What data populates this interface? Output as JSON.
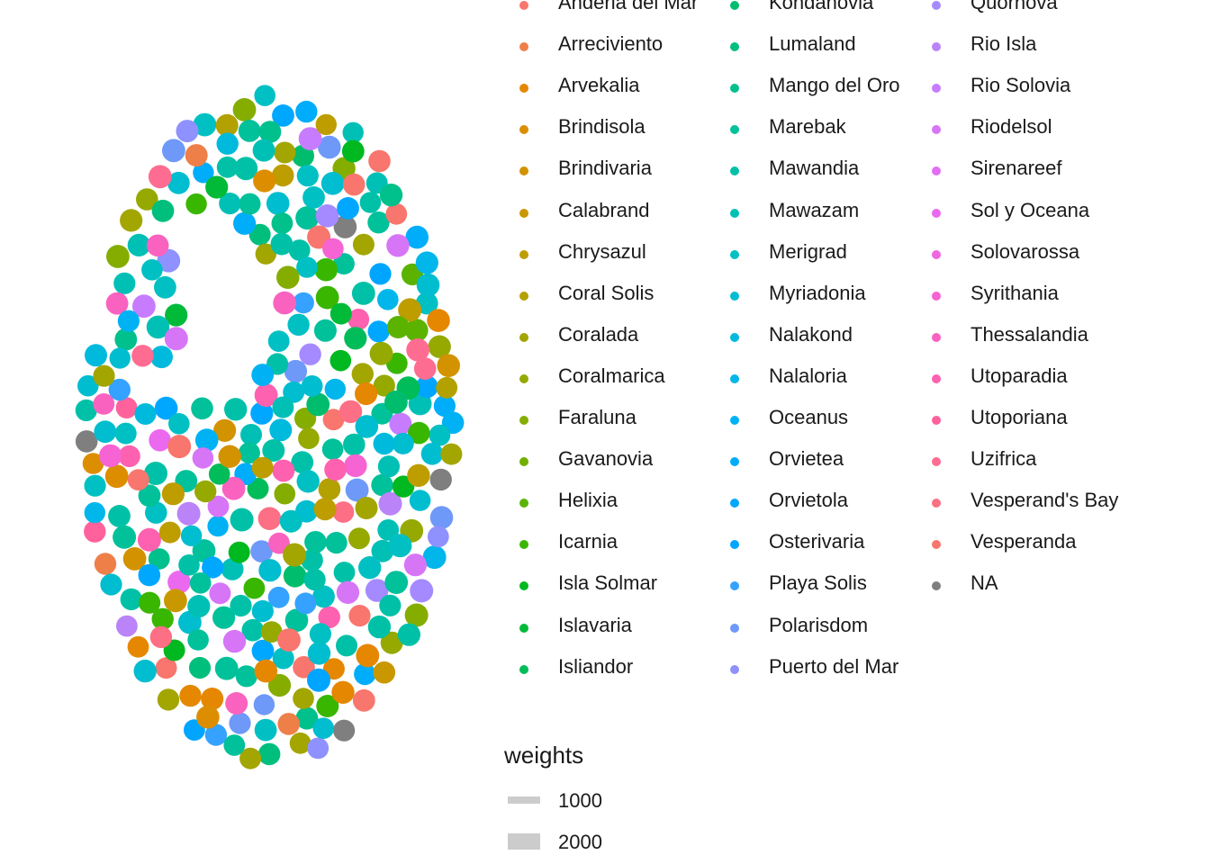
{
  "chart_data": {
    "type": "scatter",
    "title": "",
    "xlabel": "",
    "ylabel": "",
    "grid": false,
    "legend_position": "right",
    "legend": {
      "color_entries": [
        {
          "name": "Anderia del Mar",
          "color": "#F8766D"
        },
        {
          "name": "Arreciviento",
          "color": "#EF7F48"
        },
        {
          "name": "Arvekalia",
          "color": "#E58700"
        },
        {
          "name": "Brindisola",
          "color": "#DC8E00"
        },
        {
          "name": "Brindivaria",
          "color": "#D39200"
        },
        {
          "name": "Calabrand",
          "color": "#C99800"
        },
        {
          "name": "Chrysazul",
          "color": "#BD9D00"
        },
        {
          "name": "Coral Solis",
          "color": "#B2A100"
        },
        {
          "name": "Coralada",
          "color": "#A3A500"
        },
        {
          "name": "Coralmarica",
          "color": "#95A900"
        },
        {
          "name": "Faraluna",
          "color": "#85AD00"
        },
        {
          "name": "Gavanovia",
          "color": "#72B000"
        },
        {
          "name": "Helixia",
          "color": "#5BB300"
        },
        {
          "name": "Icarnia",
          "color": "#39B600"
        },
        {
          "name": "Isla Solmar",
          "color": "#00B81F"
        },
        {
          "name": "Islavaria",
          "color": "#00BA38"
        },
        {
          "name": "Isliandor",
          "color": "#00BC59"
        },
        {
          "name": "Kondanovia",
          "color": "#00BD6E"
        },
        {
          "name": "Lumaland",
          "color": "#00BF7D"
        },
        {
          "name": "Mango del Oro",
          "color": "#00C08B"
        },
        {
          "name": "Marebak",
          "color": "#00C19A"
        },
        {
          "name": "Mawandia",
          "color": "#00C1A7"
        },
        {
          "name": "Mawazam",
          "color": "#00C0B5"
        },
        {
          "name": "Merigrad",
          "color": "#00C0C3"
        },
        {
          "name": "Myriadonia",
          "color": "#00BDCF"
        },
        {
          "name": "Nalakond",
          "color": "#00BADE"
        },
        {
          "name": "Nalaloria",
          "color": "#00B6EB"
        },
        {
          "name": "Oceanus",
          "color": "#00B2F3"
        },
        {
          "name": "Orvietea",
          "color": "#00ADFA"
        },
        {
          "name": "Orvietola",
          "color": "#00A7FF"
        },
        {
          "name": "Osterivaria",
          "color": "#00A5FF"
        },
        {
          "name": "Playa Solis",
          "color": "#35A2FF"
        },
        {
          "name": "Polarisdom",
          "color": "#6E99F8"
        },
        {
          "name": "Puerto del Mar",
          "color": "#8F91FF"
        },
        {
          "name": "Quornova",
          "color": "#A58AFF"
        },
        {
          "name": "Rio Isla",
          "color": "#BA83F8"
        },
        {
          "name": "Rio Solovia",
          "color": "#C77CFF"
        },
        {
          "name": "Riodelsol",
          "color": "#D775F7"
        },
        {
          "name": "Sirenareef",
          "color": "#E26EF7"
        },
        {
          "name": "Sol y Oceana",
          "color": "#EB69EF"
        },
        {
          "name": "Solovarossa",
          "color": "#F066E0"
        },
        {
          "name": "Syrithania",
          "color": "#F663D3"
        },
        {
          "name": "Thessalandia",
          "color": "#FA62C0"
        },
        {
          "name": "Utoparadia",
          "color": "#FD61AF"
        },
        {
          "name": "Utoporiana",
          "color": "#FF619D"
        },
        {
          "name": "Uzifrica",
          "color": "#FF6C91"
        },
        {
          "name": "Vesperand's Bay",
          "color": "#FD6F85"
        },
        {
          "name": "Vesperanda",
          "color": "#F8766D"
        },
        {
          "name": "NA",
          "color": "#7F7F7F"
        }
      ],
      "size_title": "weights",
      "size_entries": [
        {
          "label": "1000",
          "value": 1000
        },
        {
          "label": "2000",
          "value": 2000
        }
      ]
    },
    "points_note_count": 560
  }
}
